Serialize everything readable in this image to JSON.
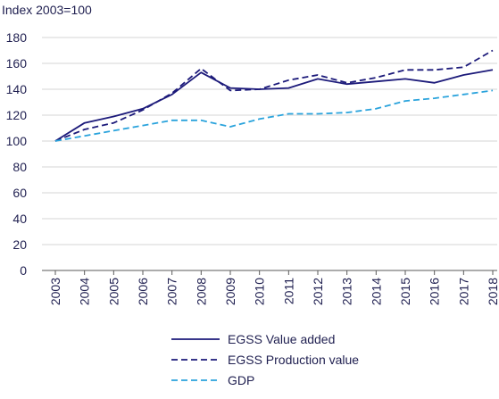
{
  "chart_data": {
    "type": "line",
    "ylabel": "Index 2003=100",
    "xlabel": "",
    "title": "",
    "categories": [
      "2003",
      "2004",
      "2005",
      "2006",
      "2007",
      "2008",
      "2009",
      "2010",
      "2011",
      "2012",
      "2013",
      "2014",
      "2015",
      "2016",
      "2017",
      "2018"
    ],
    "ylim": [
      0,
      180
    ],
    "yticks": [
      0,
      20,
      40,
      60,
      80,
      100,
      120,
      140,
      160,
      180
    ],
    "grid": true,
    "legend_position": "bottom",
    "series": [
      {
        "name": "EGSS Value added",
        "style": "solid",
        "color": "#1c1a7a",
        "values": [
          100,
          114,
          119,
          125,
          136,
          153,
          141,
          140,
          141,
          148,
          144,
          146,
          148,
          145,
          151,
          155
        ]
      },
      {
        "name": "EGSS Production value",
        "style": "dashed",
        "color": "#1c1a7a",
        "values": [
          100,
          109,
          114,
          124,
          137,
          156,
          139,
          140,
          147,
          151,
          145,
          149,
          155,
          155,
          157,
          170
        ]
      },
      {
        "name": "GDP",
        "style": "dashed",
        "color": "#2aa3dc",
        "values": [
          100,
          104,
          108,
          112,
          116,
          116,
          111,
          117,
          121,
          121,
          122,
          125,
          131,
          133,
          136,
          139
        ]
      }
    ]
  }
}
